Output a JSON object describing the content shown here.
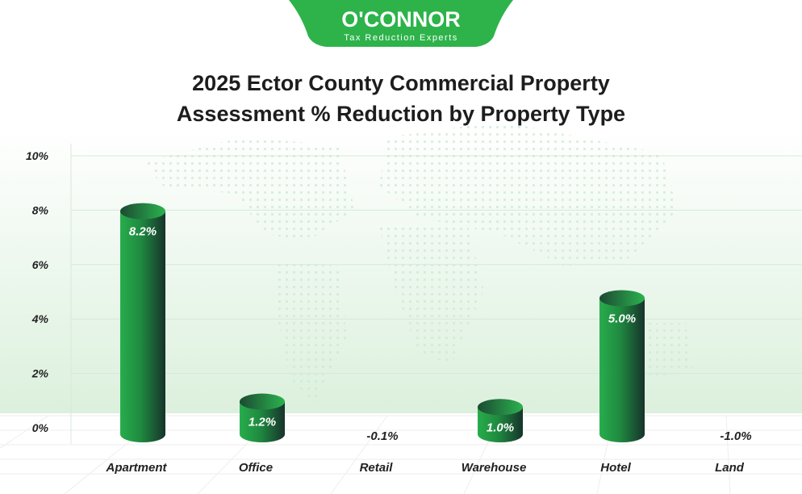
{
  "logo": {
    "brand": "O'CONNOR",
    "tagline": "Tax Reduction Experts"
  },
  "colors": {
    "brand_green": "#2db34a",
    "bar_light": "#27a84a",
    "bar_dark": "#17332b",
    "bg_tint": "#dff1e0"
  },
  "chart_data": {
    "type": "bar",
    "title_line1": "2025 Ector County Commercial Property",
    "title_line2": "Assessment % Reduction by Property Type",
    "categories": [
      "Apartment",
      "Office",
      "Retail",
      "Warehouse",
      "Hotel",
      "Land"
    ],
    "values": [
      8.2,
      1.2,
      -0.1,
      1.0,
      5.0,
      -1.0
    ],
    "data_labels": [
      "8.2%",
      "1.2%",
      "-0.1%",
      "1.0%",
      "5.0%",
      "-1.0%"
    ],
    "yticks": [
      "0%",
      "2%",
      "4%",
      "6%",
      "8%",
      "10%"
    ],
    "ytick_values": [
      0,
      2,
      4,
      6,
      8,
      10
    ],
    "ylim": [
      0,
      10
    ],
    "xlabel": "",
    "ylabel": "",
    "grid": true
  }
}
